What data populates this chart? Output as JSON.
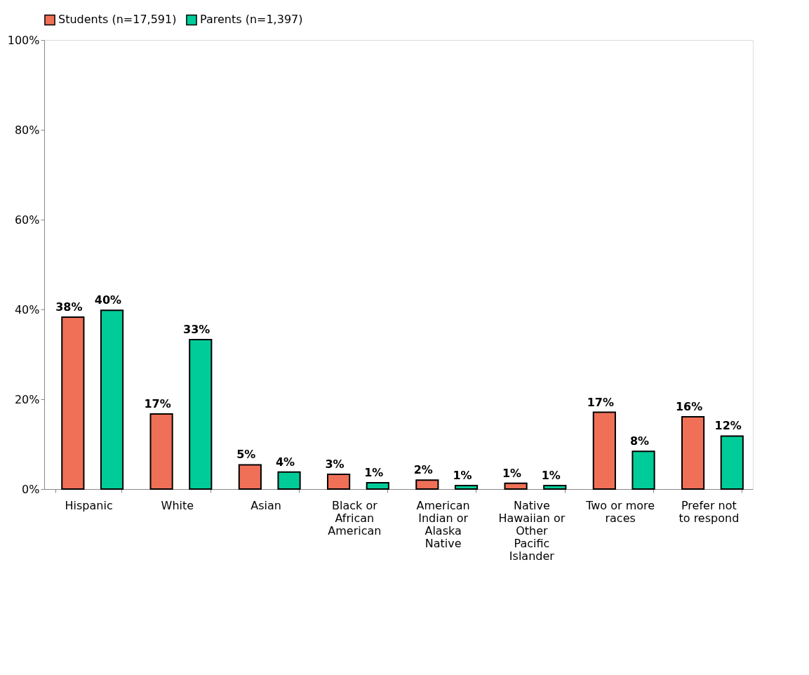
{
  "chart_data": {
    "type": "bar",
    "categories": [
      "Hispanic",
      "White",
      "Asian",
      "Black or African American",
      "American Indian or Alaska Native",
      "Native Hawaiian or Other Pacific Islander",
      "Two or more races",
      "Prefer not to respond"
    ],
    "series": [
      {
        "name": "Students (n=17,591)",
        "color": "#f07057",
        "values": [
          38.3,
          16.7,
          5.4,
          3.3,
          2.0,
          1.3,
          17.1,
          16.1
        ],
        "value_labels": [
          "38%",
          "17%",
          "5%",
          "3%",
          "2%",
          "1%",
          "17%",
          "16%"
        ]
      },
      {
        "name": "Parents (n=1,397)",
        "color": "#00cc99",
        "values": [
          39.8,
          33.3,
          3.8,
          1.4,
          0.8,
          0.8,
          8.4,
          11.8
        ],
        "value_labels": [
          "40%",
          "33%",
          "4%",
          "1%",
          "1%",
          "1%",
          "8%",
          "12%"
        ]
      }
    ],
    "ylim": [
      0,
      100
    ],
    "yticks": [
      {
        "value": 0,
        "label": "0%"
      },
      {
        "value": 20,
        "label": "20%"
      },
      {
        "value": 40,
        "label": "40%"
      },
      {
        "value": 60,
        "label": "60%"
      },
      {
        "value": 80,
        "label": "80%"
      },
      {
        "value": 100,
        "label": "100%"
      }
    ],
    "grid": false,
    "legend": "top"
  }
}
